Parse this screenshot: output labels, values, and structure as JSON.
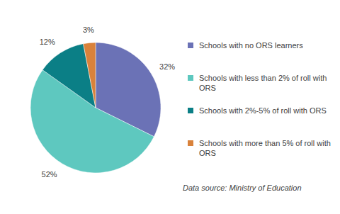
{
  "chart_data": {
    "type": "pie",
    "categories": [
      "Schools with no ORS learners",
      "Schools with less than 2% of roll with ORS",
      "Schools with 2%-5% of roll with ORS",
      "Schools with more than 5% of roll with ORS"
    ],
    "values": [
      32,
      52,
      12,
      3
    ],
    "value_labels": [
      "32%",
      "52%",
      "12%",
      "3%"
    ],
    "colors": [
      "#6b72b6",
      "#5ec8bf",
      "#0b7f86",
      "#d9823b"
    ],
    "data_labels": true,
    "legend": "right",
    "annotations": [
      "Data source: Ministry of Education"
    ]
  }
}
